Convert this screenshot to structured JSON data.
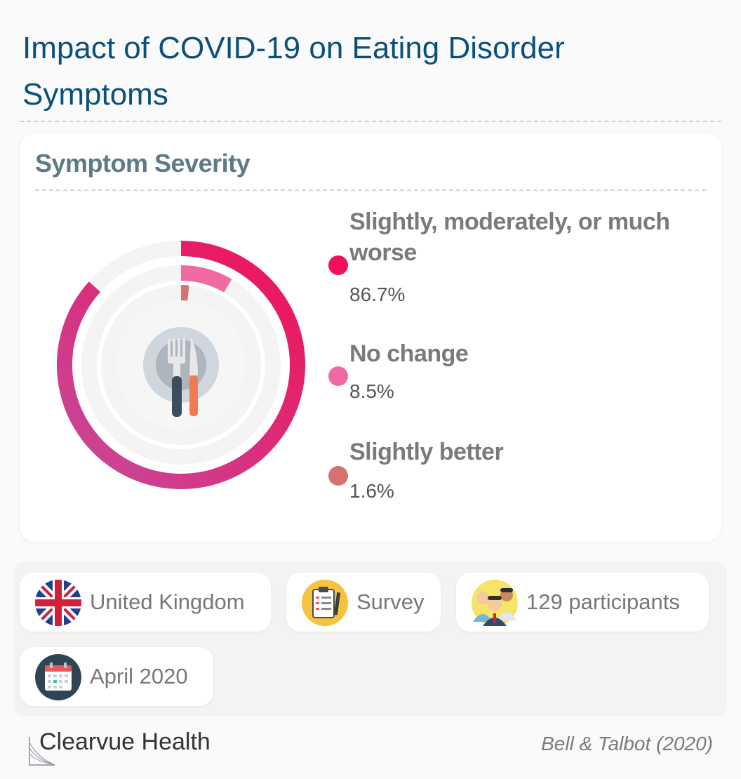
{
  "header": {
    "title": "Impact of COVID-19 on Eating Disorder Symptoms"
  },
  "card": {
    "title": "Symptom Severity"
  },
  "chart_data": {
    "type": "pie",
    "variant": "concentric-radial-donut",
    "title": "Symptom Severity",
    "categories": [
      "Slightly, moderately, or much worse",
      "No change",
      "Slightly better"
    ],
    "values": [
      86.7,
      8.5,
      1.6
    ],
    "value_labels": [
      "86.7%",
      "8.5%",
      "1.6%"
    ],
    "unit": "%",
    "colors": [
      "#f0115a",
      "#ef6aa1",
      "#d4736f"
    ],
    "legend_position": "right",
    "center_icon": "plate-fork-knife-icon"
  },
  "info": {
    "country": {
      "label": "United Kingdom",
      "icon": "uk-flag-icon"
    },
    "method": {
      "label": "Survey",
      "icon": "clipboard-icon"
    },
    "participants": {
      "label": "129 participants",
      "icon": "people-icon"
    },
    "date": {
      "label": "April 2020",
      "icon": "calendar-icon"
    }
  },
  "footer": {
    "brand": "Clearvue Health",
    "citation": "Bell & Talbot (2020)"
  }
}
